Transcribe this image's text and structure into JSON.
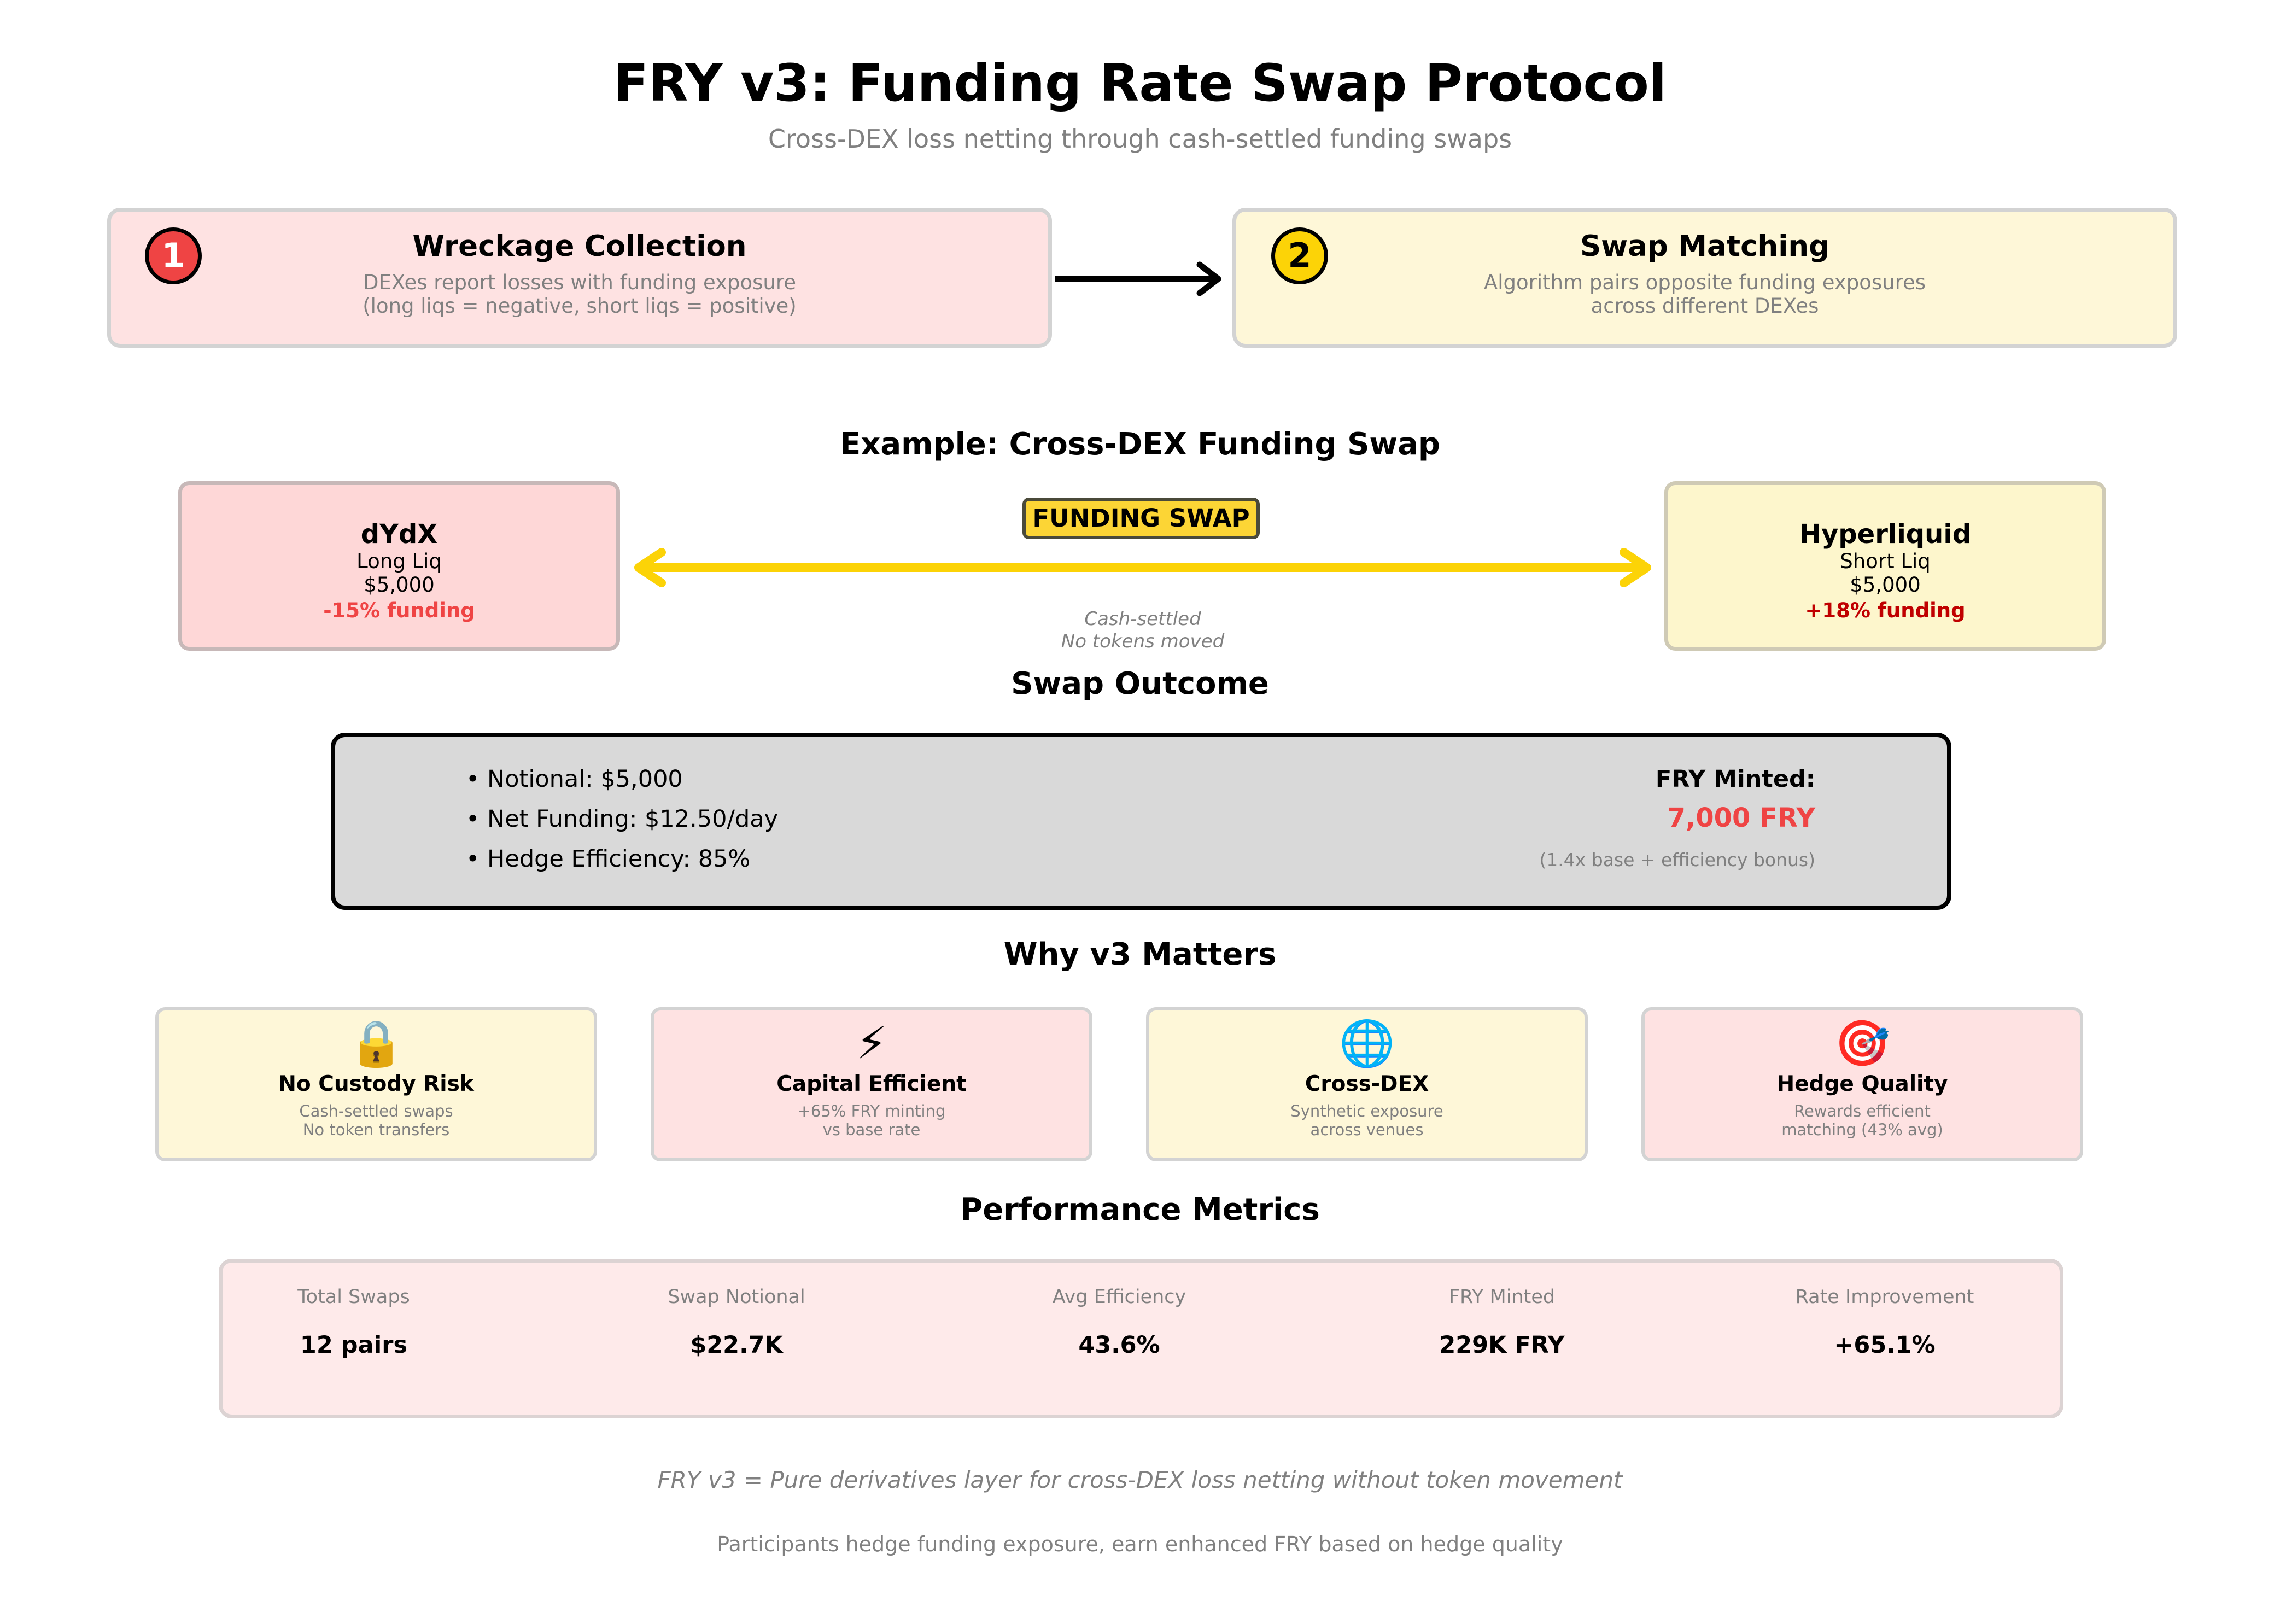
{
  "title": "FRY v3: Funding Rate Swap Protocol",
  "subtitle": "Cross-DEX loss netting through cash-settled funding swaps",
  "steps": [
    {
      "number": "1",
      "title": "Wreckage Collection",
      "desc1": "DEXes report losses with funding exposure",
      "desc2": "(long liqs = negative, short liqs = positive)"
    },
    {
      "number": "2",
      "title": "Swap Matching",
      "desc1": "Algorithm pairs opposite funding exposures",
      "desc2": "across different DEXes"
    }
  ],
  "example": {
    "heading": "Example: Cross-DEX Funding Swap",
    "left": {
      "name": "dYdX",
      "side": "Long Liq",
      "amount": "$5,000",
      "funding": "-15% funding"
    },
    "right": {
      "name": "Hyperliquid",
      "side": "Short Liq",
      "amount": "$5,000",
      "funding": "+18% funding"
    },
    "tag": "FUNDING SWAP",
    "note1": "Cash-settled",
    "note2": "No tokens moved"
  },
  "outcome": {
    "heading": "Swap Outcome",
    "bullets": [
      "• Notional: $5,000",
      "• Net Funding: $12.50/day",
      "• Hedge Efficiency: 85%"
    ],
    "minted_label": "FRY Minted:",
    "minted_value": "7,000 FRY",
    "minted_note": "(1.4x base + efficiency bonus)"
  },
  "why": {
    "heading": "Why v3 Matters",
    "cards": [
      {
        "icon": "lock-icon",
        "glyph": "🔒",
        "title": "No Custody Risk",
        "desc1": "Cash-settled swaps",
        "desc2": "No token transfers"
      },
      {
        "icon": "lightning-icon",
        "glyph": "⚡",
        "title": "Capital Efficient",
        "desc1": "+65% FRY minting",
        "desc2": "vs base rate"
      },
      {
        "icon": "globe-icon",
        "glyph": "🌐",
        "title": "Cross-DEX",
        "desc1": "Synthetic exposure",
        "desc2": "across venues"
      },
      {
        "icon": "target-icon",
        "glyph": "🎯",
        "title": "Hedge Quality",
        "desc1": "Rewards efficient",
        "desc2": "matching (43% avg)"
      }
    ]
  },
  "metrics": {
    "heading": "Performance Metrics",
    "items": [
      {
        "label": "Total Swaps",
        "value": "12 pairs"
      },
      {
        "label": "Swap Notional",
        "value": "$22.7K"
      },
      {
        "label": "Avg Efficiency",
        "value": "43.6%"
      },
      {
        "label": "FRY Minted",
        "value": "229K FRY"
      },
      {
        "label": "Rate Improvement",
        "value": "+65.1%"
      }
    ]
  },
  "footer": {
    "note": "FRY v3 = Pure derivatives layer for cross-DEX loss netting without token movement",
    "sub": "Participants hedge funding exposure, earn enhanced FRY based on hedge quality"
  },
  "colors": {
    "red": "#ef4444",
    "dark_red": "#c00000",
    "yellow": "#fcd307",
    "arrow_yellow": "#fcd307"
  }
}
